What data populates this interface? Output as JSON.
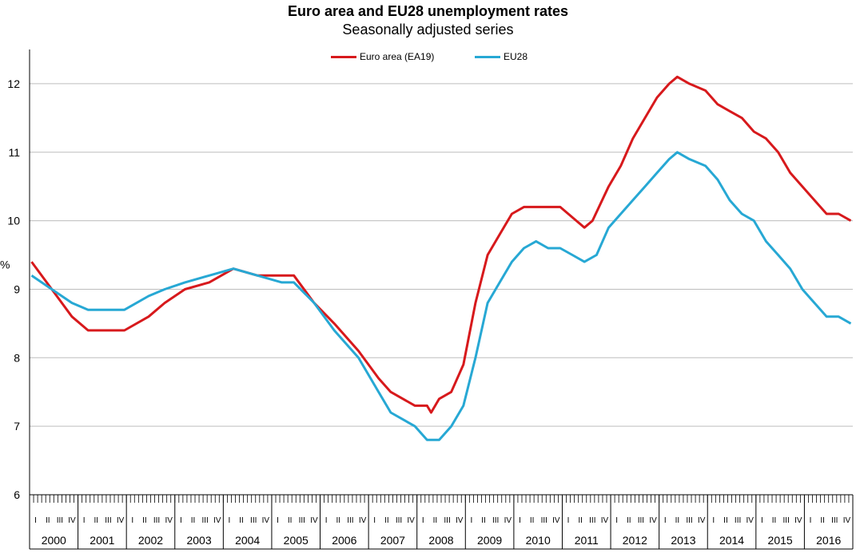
{
  "chart_data": {
    "type": "line",
    "title": "Euro area and EU28 unemployment rates",
    "subtitle": "Seasonally adjusted series",
    "ylabel": "%",
    "ylim": [
      6,
      12.5
    ],
    "yticks": [
      6,
      7,
      8,
      9,
      10,
      11,
      12
    ],
    "grid": "horizontal",
    "legend_position": "top-center",
    "x_start": "2000-01",
    "x_end": "2016-12",
    "quarter_labels": [
      "I",
      "II",
      "III",
      "IV"
    ],
    "years": [
      "2000",
      "2001",
      "2002",
      "2003",
      "2004",
      "2005",
      "2006",
      "2007",
      "2008",
      "2009",
      "2010",
      "2011",
      "2012",
      "2013",
      "2014",
      "2015",
      "2016"
    ],
    "series": [
      {
        "name": "Euro area (EA19)",
        "color": "#d7191c",
        "points": [
          [
            "2000-01",
            9.4
          ],
          [
            "2000-06",
            9.0
          ],
          [
            "2000-11",
            8.6
          ],
          [
            "2001-03",
            8.4
          ],
          [
            "2001-12",
            8.4
          ],
          [
            "2002-06",
            8.6
          ],
          [
            "2002-10",
            8.8
          ],
          [
            "2003-03",
            9.0
          ],
          [
            "2003-09",
            9.1
          ],
          [
            "2004-03",
            9.3
          ],
          [
            "2004-09",
            9.2
          ],
          [
            "2005-03",
            9.2
          ],
          [
            "2005-06",
            9.2
          ],
          [
            "2005-11",
            8.8
          ],
          [
            "2006-04",
            8.5
          ],
          [
            "2006-10",
            8.1
          ],
          [
            "2007-03",
            7.7
          ],
          [
            "2007-06",
            7.5
          ],
          [
            "2007-12",
            7.3
          ],
          [
            "2008-03",
            7.3
          ],
          [
            "2008-04",
            7.2
          ],
          [
            "2008-06",
            7.4
          ],
          [
            "2008-09",
            7.5
          ],
          [
            "2008-12",
            7.9
          ],
          [
            "2009-03",
            8.8
          ],
          [
            "2009-06",
            9.5
          ],
          [
            "2009-09",
            9.8
          ],
          [
            "2009-12",
            10.1
          ],
          [
            "2010-03",
            10.2
          ],
          [
            "2010-09",
            10.2
          ],
          [
            "2010-12",
            10.2
          ],
          [
            "2011-04",
            10.0
          ],
          [
            "2011-06",
            9.9
          ],
          [
            "2011-08",
            10.0
          ],
          [
            "2011-12",
            10.5
          ],
          [
            "2012-03",
            10.8
          ],
          [
            "2012-06",
            11.2
          ],
          [
            "2012-09",
            11.5
          ],
          [
            "2012-12",
            11.8
          ],
          [
            "2013-03",
            12.0
          ],
          [
            "2013-05",
            12.1
          ],
          [
            "2013-08",
            12.0
          ],
          [
            "2013-12",
            11.9
          ],
          [
            "2014-03",
            11.7
          ],
          [
            "2014-06",
            11.6
          ],
          [
            "2014-09",
            11.5
          ],
          [
            "2014-12",
            11.3
          ],
          [
            "2015-03",
            11.2
          ],
          [
            "2015-06",
            11.0
          ],
          [
            "2015-09",
            10.7
          ],
          [
            "2015-12",
            10.5
          ],
          [
            "2016-03",
            10.3
          ],
          [
            "2016-06",
            10.1
          ],
          [
            "2016-09",
            10.1
          ],
          [
            "2016-12",
            10.0
          ]
        ]
      },
      {
        "name": "EU28",
        "color": "#27a8d4",
        "points": [
          [
            "2000-01",
            9.2
          ],
          [
            "2000-06",
            9.0
          ],
          [
            "2000-11",
            8.8
          ],
          [
            "2001-03",
            8.7
          ],
          [
            "2001-12",
            8.7
          ],
          [
            "2002-06",
            8.9
          ],
          [
            "2002-10",
            9.0
          ],
          [
            "2003-03",
            9.1
          ],
          [
            "2003-09",
            9.2
          ],
          [
            "2004-03",
            9.3
          ],
          [
            "2004-09",
            9.2
          ],
          [
            "2005-03",
            9.1
          ],
          [
            "2005-06",
            9.1
          ],
          [
            "2005-11",
            8.8
          ],
          [
            "2006-04",
            8.4
          ],
          [
            "2006-10",
            8.0
          ],
          [
            "2007-03",
            7.5
          ],
          [
            "2007-06",
            7.2
          ],
          [
            "2007-12",
            7.0
          ],
          [
            "2008-03",
            6.8
          ],
          [
            "2008-06",
            6.8
          ],
          [
            "2008-09",
            7.0
          ],
          [
            "2008-12",
            7.3
          ],
          [
            "2009-03",
            8.0
          ],
          [
            "2009-06",
            8.8
          ],
          [
            "2009-09",
            9.1
          ],
          [
            "2009-12",
            9.4
          ],
          [
            "2010-03",
            9.6
          ],
          [
            "2010-06",
            9.7
          ],
          [
            "2010-09",
            9.6
          ],
          [
            "2010-12",
            9.6
          ],
          [
            "2011-03",
            9.5
          ],
          [
            "2011-06",
            9.4
          ],
          [
            "2011-09",
            9.5
          ],
          [
            "2011-12",
            9.9
          ],
          [
            "2012-03",
            10.1
          ],
          [
            "2012-06",
            10.3
          ],
          [
            "2012-09",
            10.5
          ],
          [
            "2012-12",
            10.7
          ],
          [
            "2013-03",
            10.9
          ],
          [
            "2013-05",
            11.0
          ],
          [
            "2013-08",
            10.9
          ],
          [
            "2013-12",
            10.8
          ],
          [
            "2014-03",
            10.6
          ],
          [
            "2014-06",
            10.3
          ],
          [
            "2014-09",
            10.1
          ],
          [
            "2014-12",
            10.0
          ],
          [
            "2015-03",
            9.7
          ],
          [
            "2015-06",
            9.5
          ],
          [
            "2015-09",
            9.3
          ],
          [
            "2015-12",
            9.0
          ],
          [
            "2016-03",
            8.8
          ],
          [
            "2016-06",
            8.6
          ],
          [
            "2016-09",
            8.6
          ],
          [
            "2016-12",
            8.5
          ]
        ]
      }
    ]
  }
}
